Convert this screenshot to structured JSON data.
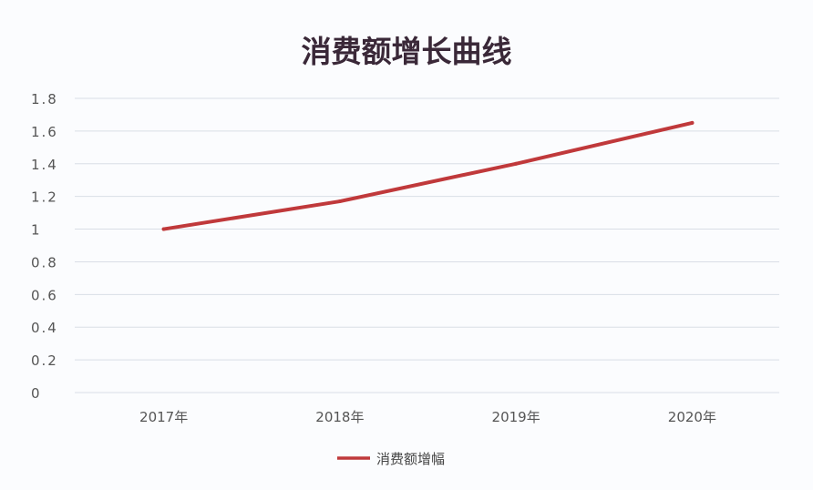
{
  "chart_data": {
    "type": "line",
    "title": "消费额增长曲线",
    "categories": [
      "2017年",
      "2018年",
      "2019年",
      "2020年"
    ],
    "series": [
      {
        "name": "消费额增幅",
        "values": [
          1.0,
          1.17,
          1.4,
          1.65
        ],
        "color": "#c0393b"
      }
    ],
    "yticks": [
      "0",
      "0.2",
      "0.4",
      "0.6",
      "0.8",
      "1",
      "1.2",
      "1.4",
      "1.6",
      "1.8"
    ],
    "ylim": [
      0,
      1.8
    ],
    "xlabel": "",
    "ylabel": "",
    "grid": true,
    "legend": "bottom"
  }
}
